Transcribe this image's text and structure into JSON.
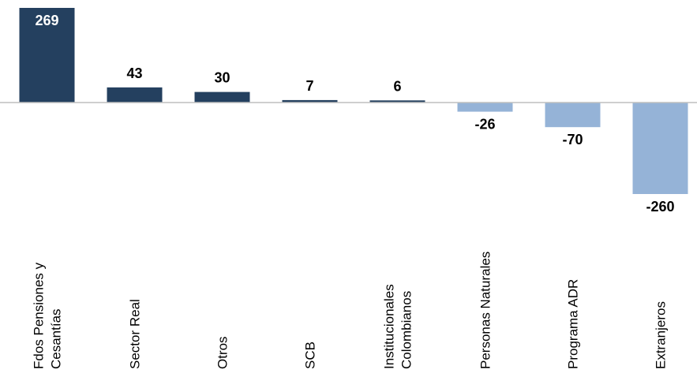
{
  "chart_data": {
    "type": "bar",
    "categories": [
      [
        "Fdos Pensiones y",
        "Cesantías"
      ],
      [
        "Sector Real"
      ],
      [
        "Otros"
      ],
      [
        "SCB"
      ],
      [
        "Institucionales",
        "Colombianos"
      ],
      [
        "Personas Naturales"
      ],
      [
        "Programa ADR"
      ],
      [
        "Extranjeros"
      ]
    ],
    "values": [
      269,
      43,
      30,
      7,
      6,
      -26,
      -70,
      -260
    ],
    "value_labels": [
      "269",
      "43",
      "30",
      "7",
      "6",
      "-26",
      "-70",
      "-260"
    ],
    "title": "",
    "xlabel": "",
    "ylabel": "",
    "grid": false,
    "legend": "none",
    "colors": {
      "positive": "#24405f",
      "negative": "#95b3d7",
      "axis": "#bfbfbf"
    }
  }
}
